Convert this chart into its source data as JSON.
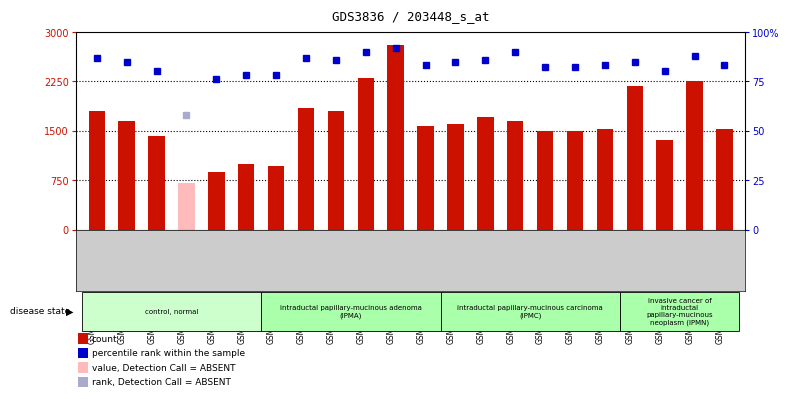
{
  "title": "GDS3836 / 203448_s_at",
  "samples": [
    "GSM490138",
    "GSM490139",
    "GSM490140",
    "GSM490141",
    "GSM490142",
    "GSM490143",
    "GSM490144",
    "GSM490145",
    "GSM490146",
    "GSM490147",
    "GSM490148",
    "GSM490149",
    "GSM490150",
    "GSM490151",
    "GSM490152",
    "GSM490153",
    "GSM490154",
    "GSM490155",
    "GSM490156",
    "GSM490157",
    "GSM490158",
    "GSM490159"
  ],
  "count_values": [
    1800,
    1650,
    1420,
    700,
    870,
    1000,
    960,
    1850,
    1800,
    2300,
    2800,
    1570,
    1600,
    1710,
    1650,
    1500,
    1490,
    1520,
    2180,
    1360,
    2250,
    1530
  ],
  "count_absent": [
    false,
    false,
    false,
    true,
    false,
    false,
    false,
    false,
    false,
    false,
    false,
    false,
    false,
    false,
    false,
    false,
    false,
    false,
    false,
    false,
    false,
    false
  ],
  "rank_values": [
    87,
    85,
    80,
    58,
    76,
    78,
    78,
    87,
    86,
    90,
    92,
    83,
    85,
    86,
    90,
    82,
    82,
    83,
    85,
    80,
    88,
    83
  ],
  "rank_absent": [
    false,
    false,
    false,
    true,
    false,
    false,
    false,
    false,
    false,
    false,
    false,
    false,
    false,
    false,
    false,
    false,
    false,
    false,
    false,
    false,
    false,
    false
  ],
  "ylim_left": [
    0,
    3000
  ],
  "ylim_right": [
    0,
    100
  ],
  "yticks_left": [
    0,
    750,
    1500,
    2250,
    3000
  ],
  "yticks_right": [
    0,
    25,
    50,
    75,
    100
  ],
  "bar_color": "#cc1100",
  "bar_absent_color": "#ffbbbb",
  "dot_color": "#0000cc",
  "dot_absent_color": "#aaaacc",
  "bg_color": "#cccccc",
  "plot_bg": "#ffffff",
  "disease_groups": [
    {
      "label": "control, normal",
      "start": 0,
      "end": 6,
      "color": "#ccffcc"
    },
    {
      "label": "intraductal papillary-mucinous adenoma\n(IPMA)",
      "start": 6,
      "end": 12,
      "color": "#aaffaa"
    },
    {
      "label": "intraductal papillary-mucinous carcinoma\n(IPMC)",
      "start": 12,
      "end": 18,
      "color": "#aaffaa"
    },
    {
      "label": "invasive cancer of\nintraductal\npapillary-mucinous\nneoplasm (IPMN)",
      "start": 18,
      "end": 22,
      "color": "#aaffaa"
    }
  ],
  "legend_items": [
    {
      "label": "count",
      "color": "#cc1100"
    },
    {
      "label": "percentile rank within the sample",
      "color": "#0000cc"
    },
    {
      "label": "value, Detection Call = ABSENT",
      "color": "#ffbbbb"
    },
    {
      "label": "rank, Detection Call = ABSENT",
      "color": "#aaaacc"
    }
  ]
}
